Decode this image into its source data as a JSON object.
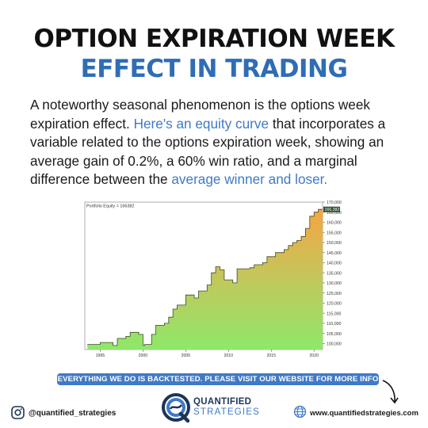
{
  "header": {
    "title_line1": "OPTION EXPIRATION WEEK",
    "title_line2": "EFFECT IN TRADING"
  },
  "body": {
    "seg1": "A noteworthy seasonal phenomenon is the options week expiration effect. ",
    "seg2": "Here's an equity curve",
    "seg3": " that incorporates a variable related to the options expiration week, showing an average gain of 0.2%, a 60% win ratio, and a marginal difference between the ",
    "seg4": "average winner and loser."
  },
  "chart_data": {
    "type": "area",
    "title": "Portfolio Equity = 166382",
    "current_value_label": "166,382",
    "x_ticks": [
      "1995",
      "2000",
      "2005",
      "2010",
      "2015",
      "2020"
    ],
    "ylim": [
      97000,
      170000
    ],
    "y_ticks": [
      100000,
      105000,
      110000,
      115000,
      120000,
      125000,
      130000,
      135000,
      140000,
      145000,
      150000,
      155000,
      160000,
      165000,
      170000
    ],
    "y_tick_labels": [
      "100,000",
      "105,000",
      "110,000",
      "115,000",
      "120,000",
      "125,000",
      "130,000",
      "135,000",
      "140,000",
      "145,000",
      "150,000",
      "155,000",
      "160,000",
      "165,000",
      "170,000"
    ],
    "x": [
      1993.5,
      1995,
      1996.5,
      1997,
      1998,
      1998.5,
      1999.5,
      2000,
      2000.2,
      2001,
      2001.5,
      2002.5,
      2003,
      2003.5,
      2004,
      2005,
      2006,
      2006.5,
      2007.5,
      2008,
      2008.5,
      2009,
      2009.5,
      2010.5,
      2011,
      2012,
      2012.5,
      2013,
      2014,
      2014.5,
      2015.5,
      2016.5,
      2017,
      2017.5,
      2018,
      2018.5,
      2019,
      2019.5,
      2020,
      2020.5
    ],
    "values": [
      99500,
      100500,
      99000,
      102500,
      103500,
      105500,
      104500,
      99000,
      99500,
      104500,
      109000,
      110000,
      113000,
      117000,
      119000,
      124000,
      122500,
      126000,
      129000,
      135000,
      138000,
      136500,
      131500,
      130000,
      137000,
      137000,
      137500,
      139000,
      140000,
      143000,
      145000,
      146500,
      148500,
      150000,
      151000,
      153000,
      157000,
      163000,
      165000,
      166382
    ],
    "colors": {
      "low": "#8ee86a",
      "mid": "#c7c45a",
      "high": "#f5a542",
      "line": "#3b4a2a"
    }
  },
  "banner": {
    "text": "EVERYTHING WE DO IS BACKTESTED. PLEASE VISIT OUR WEBSITE FOR MORE INFO"
  },
  "footer": {
    "instagram_handle": "@quantified_strategies",
    "brand_top": "QUANTIFIED",
    "brand_bottom": "STRATEGIES",
    "website": "www.quantifiedstrategies.com",
    "icons": [
      "instagram-icon",
      "quantified-strategies-logo",
      "globe-icon",
      "curved-arrow-icon"
    ]
  }
}
